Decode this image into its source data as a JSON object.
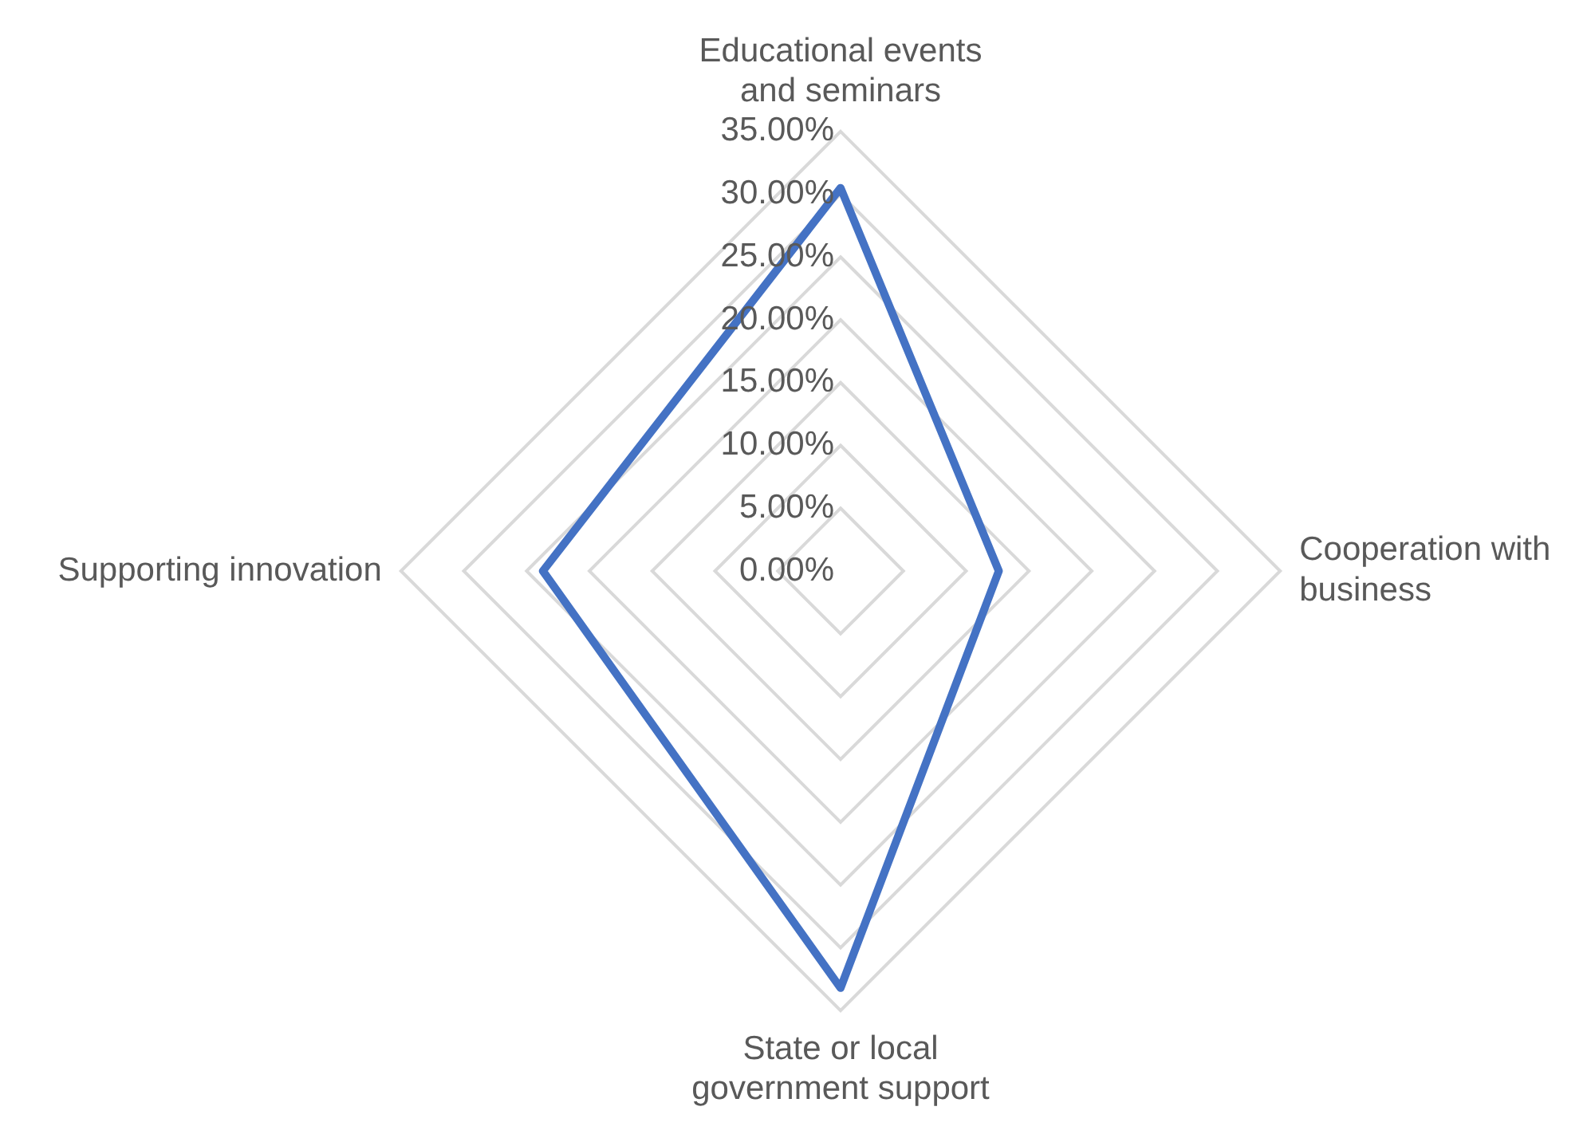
{
  "chart_data": {
    "type": "radar",
    "categories": [
      "Educational events and seminars",
      "Cooperation with business",
      "State or local government support",
      "Supporting innovation"
    ],
    "series": [
      {
        "color": "#4472c4",
        "values": [
          30.5,
          12.6,
          33.2,
          23.7
        ]
      }
    ],
    "ylim": [
      0,
      35
    ],
    "yticks": [
      {
        "value": 0,
        "label": "0.00%"
      },
      {
        "value": 5,
        "label": "5.00%"
      },
      {
        "value": 10,
        "label": "10.00%"
      },
      {
        "value": 15,
        "label": "15.00%"
      },
      {
        "value": 20,
        "label": "20.00%"
      },
      {
        "value": 25,
        "label": "25.00%"
      },
      {
        "value": 30,
        "label": "30.00%"
      },
      {
        "value": 35,
        "label": "35.00%"
      }
    ],
    "grid": true,
    "legend": false,
    "marker": "none"
  }
}
